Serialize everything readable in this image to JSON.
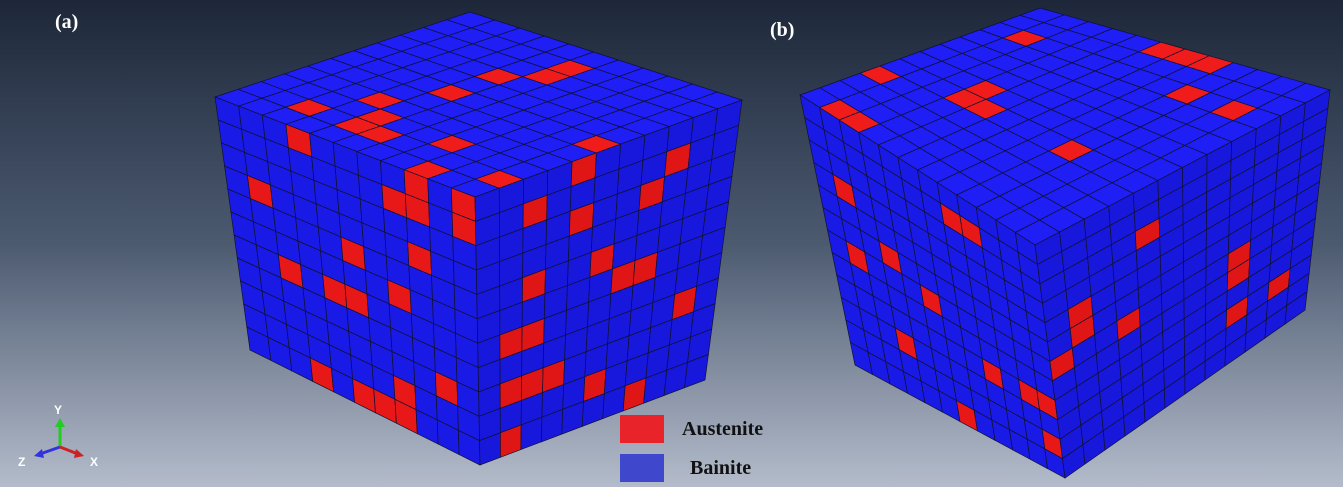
{
  "panels": [
    {
      "label": "(a)"
    },
    {
      "label": "(b)"
    }
  ],
  "legend": [
    {
      "label": "Austenite",
      "color": "#e8242a"
    },
    {
      "label": "Bainite",
      "color": "#3f48cc"
    }
  ],
  "axes_triad": {
    "y": "Y",
    "z": "Z",
    "x": "X"
  }
}
